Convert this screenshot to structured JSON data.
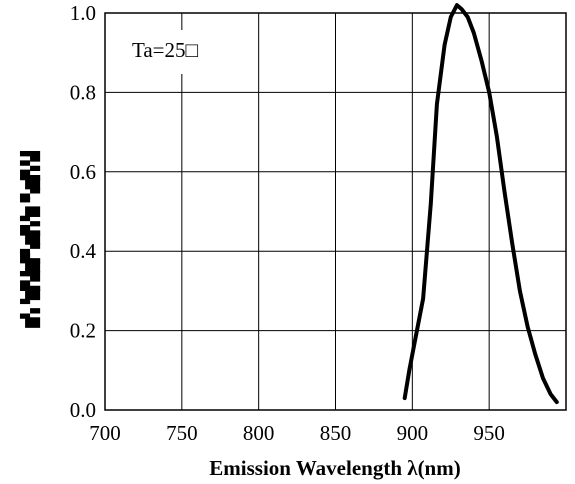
{
  "chart_data": {
    "type": "line",
    "title": "",
    "xlabel": "Emission Wavelength λ(nm)",
    "ylabel": "",
    "xlim": [
      700,
      1000
    ],
    "ylim": [
      0,
      1.0
    ],
    "x_ticks": [
      700,
      750,
      800,
      850,
      900,
      950
    ],
    "x_tick_labels": [
      "700",
      "750",
      "800",
      "850",
      "900",
      "950"
    ],
    "y_ticks": [
      0,
      0.2,
      0.4,
      0.6,
      0.8,
      1.0
    ],
    "y_tick_labels": [
      "0.0",
      "0.2",
      "0.4",
      "0.6",
      "0.8",
      "1.0"
    ],
    "grid": true,
    "annotation": "Ta=25□",
    "series": [
      {
        "name": "",
        "x": [
          895,
          898,
          902,
          907,
          912,
          916,
          921,
          925,
          929,
          932,
          936,
          940,
          945,
          950,
          955,
          960,
          965,
          970,
          975,
          980,
          985,
          990,
          994
        ],
        "y": [
          0.03,
          0.1,
          0.18,
          0.28,
          0.52,
          0.77,
          0.92,
          0.99,
          1.02,
          1.01,
          0.99,
          0.95,
          0.88,
          0.8,
          0.69,
          0.55,
          0.42,
          0.3,
          0.21,
          0.14,
          0.08,
          0.04,
          0.02
        ]
      }
    ]
  },
  "colors": {
    "line": "#000000",
    "grid": "#000000",
    "frame": "#000000"
  }
}
